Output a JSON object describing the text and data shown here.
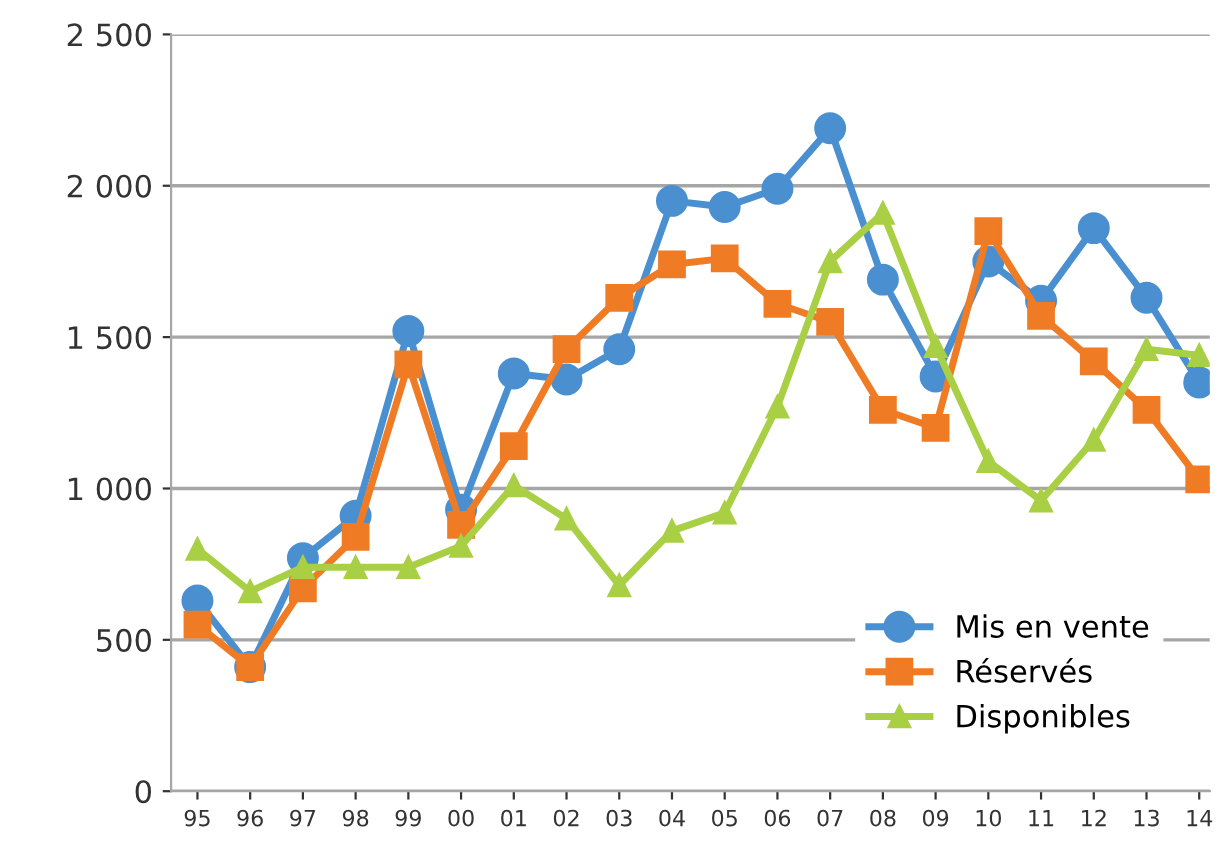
{
  "chart_data": {
    "type": "line",
    "categories": [
      "95",
      "96",
      "97",
      "98",
      "99",
      "00",
      "01",
      "02",
      "03",
      "04",
      "05",
      "06",
      "07",
      "08",
      "09",
      "10",
      "11",
      "12",
      "13",
      "14"
    ],
    "series": [
      {
        "name": "Mis en vente",
        "color": "#4a8fcf",
        "marker": "circle",
        "values": [
          630,
          410,
          770,
          910,
          1520,
          930,
          1380,
          1360,
          1460,
          1950,
          1930,
          1990,
          2190,
          1690,
          1370,
          1750,
          1620,
          1860,
          1630,
          1350
        ]
      },
      {
        "name": "Réservés",
        "color": "#f07b25",
        "marker": "square",
        "values": [
          550,
          410,
          670,
          840,
          1410,
          880,
          1140,
          1460,
          1630,
          1740,
          1760,
          1610,
          1550,
          1260,
          1200,
          1850,
          1570,
          1420,
          1260,
          1030
        ]
      },
      {
        "name": "Disponibles",
        "color": "#a9cf45",
        "marker": "triangle",
        "values": [
          800,
          660,
          740,
          740,
          740,
          810,
          1010,
          900,
          680,
          860,
          920,
          1270,
          1750,
          1910,
          1470,
          1090,
          960,
          1160,
          1460,
          1440
        ]
      }
    ],
    "ylim": [
      0,
      2500
    ],
    "yticks": [
      0,
      500,
      {
        "value": 1000,
        "label": "1 000"
      },
      {
        "value": 1500,
        "label": "1 500"
      },
      {
        "value": 2000,
        "label": "2 000"
      },
      {
        "value": 2500,
        "label": "2 500"
      }
    ],
    "grid": "y",
    "legend": "bottom right",
    "line_style": "solid"
  }
}
